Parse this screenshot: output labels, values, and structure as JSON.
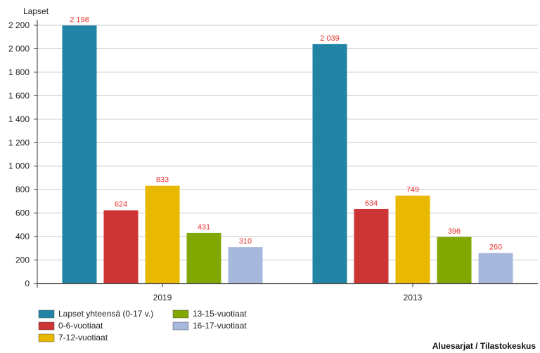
{
  "chart_data": {
    "type": "bar",
    "ylabel": "Lapset",
    "ylim": [
      0,
      2200
    ],
    "yticks": [
      0,
      200,
      400,
      600,
      800,
      1000,
      1200,
      1400,
      1600,
      1800,
      2000,
      2200
    ],
    "ytick_labels": [
      "0",
      "200",
      "400",
      "600",
      "800",
      "1 000",
      "1 200",
      "1 400",
      "1 600",
      "1 800",
      "2 000",
      "2 200"
    ],
    "grid": true,
    "legend_position": "bottom-left",
    "categories": [
      "2019",
      "2013"
    ],
    "series": [
      {
        "name": "Lapset yhteensä (0-17 v.)",
        "color": "#2184a5",
        "values": [
          2198,
          2039
        ],
        "labels": [
          "2 198",
          "2 039"
        ]
      },
      {
        "name": "0-6-vuotiaat",
        "color": "#cd3535",
        "values": [
          624,
          634
        ],
        "labels": [
          "624",
          "634"
        ]
      },
      {
        "name": "7-12-vuotiaat",
        "color": "#e9b800",
        "values": [
          833,
          749
        ],
        "labels": [
          "833",
          "749"
        ]
      },
      {
        "name": "13-15-vuotiaat",
        "color": "#80a800",
        "values": [
          431,
          396
        ],
        "labels": [
          "431",
          "396"
        ]
      },
      {
        "name": "16-17-vuotiaat",
        "color": "#a7b8dd",
        "values": [
          310,
          260
        ],
        "labels": [
          "310",
          "260"
        ]
      }
    ]
  },
  "source": "Aluesarjat / Tilastokeskus"
}
